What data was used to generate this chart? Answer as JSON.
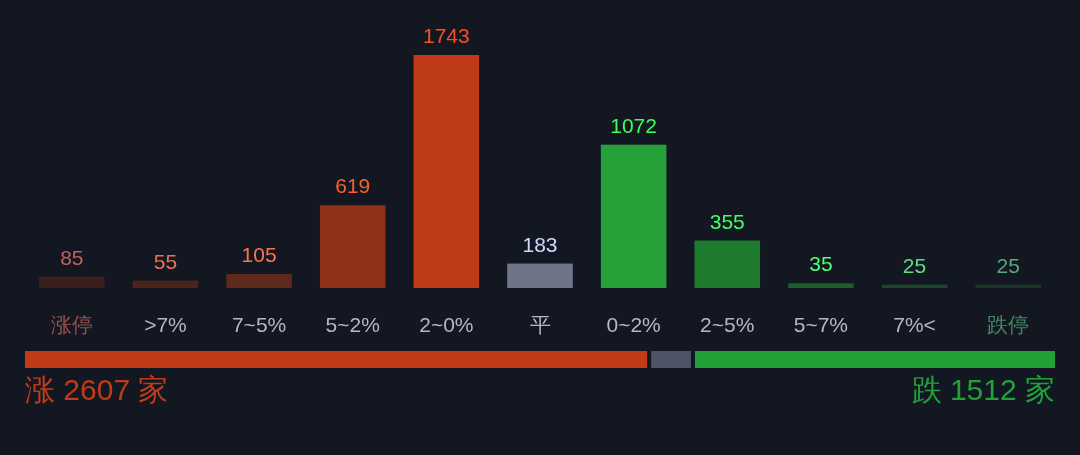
{
  "chart_data": [
    {
      "type": "bar",
      "categories": [
        "涨停",
        ">7%",
        "7~5%",
        "5~2%",
        "2~0%",
        "平",
        "0~2%",
        "2~5%",
        "5~7%",
        "7%<",
        "跌停"
      ],
      "values": [
        85,
        55,
        105,
        619,
        1743,
        183,
        1072,
        355,
        35,
        25,
        25
      ],
      "colors": [
        "#3b1f1d",
        "#4a2319",
        "#5e2a1b",
        "#8e3319",
        "#bf3a17",
        "#6f7489",
        "#26a139",
        "#1f7c2f",
        "#1d5c2b",
        "#1c4628",
        "#1b3526"
      ],
      "data_labels": true,
      "tick_labels": "x"
    },
    {
      "type": "bar",
      "orientation": "horizontal",
      "stacked": true,
      "categories": [
        null
      ],
      "series": [
        {
          "color": "#c13b17",
          "values": [
            2607
          ],
          "value_labels": [
            "涨 2607 家"
          ]
        },
        {
          "color": "#4e5466",
          "values": [
            183
          ],
          "value_labels": [
            null
          ]
        },
        {
          "color": "#23a139",
          "values": [
            1512
          ],
          "value_labels": [
            "跌 1512 家"
          ]
        }
      ]
    }
  ]
}
